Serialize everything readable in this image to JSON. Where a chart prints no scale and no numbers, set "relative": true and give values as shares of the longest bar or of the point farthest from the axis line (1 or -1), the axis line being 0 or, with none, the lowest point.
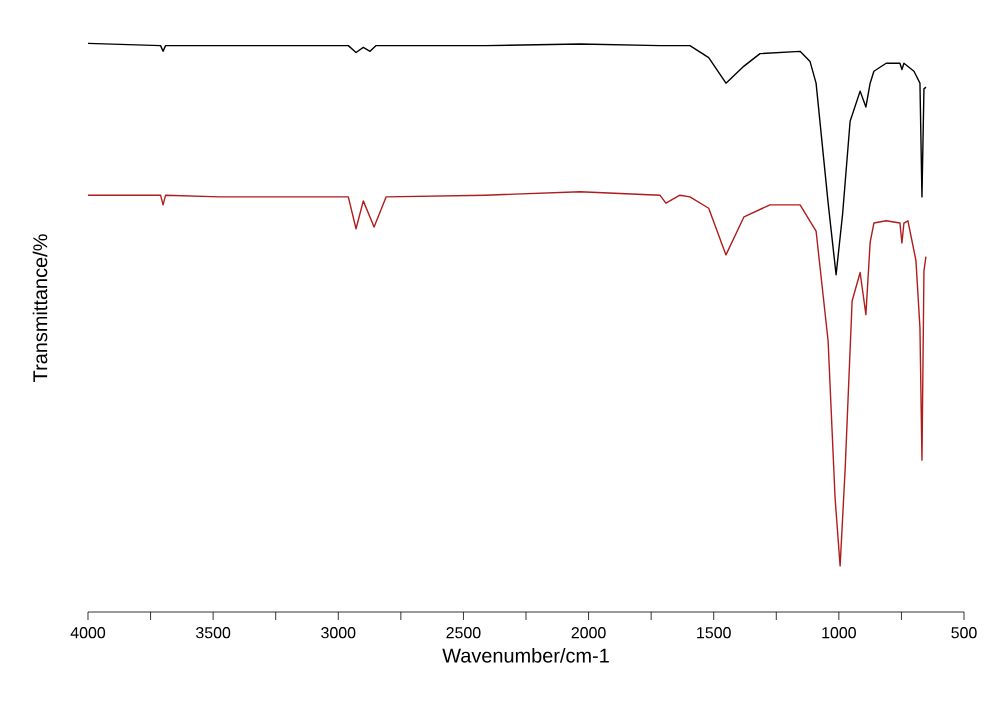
{
  "chart_data": {
    "type": "line",
    "relative": true,
    "xlabel": "Wavenumber/cm-1",
    "ylabel": "Transmittance/%",
    "xlim": [
      4000,
      500
    ],
    "xticks": [
      4000,
      {
        "value": 3750,
        "label": null
      },
      3500,
      {
        "value": 3250,
        "label": null
      },
      3000,
      {
        "value": 2750,
        "label": null
      },
      2500,
      {
        "value": 2250,
        "label": null
      },
      2000,
      {
        "value": 1750,
        "label": null
      },
      1500,
      {
        "value": 1250,
        "label": null
      },
      1000,
      {
        "value": 750,
        "label": null
      },
      500
    ],
    "tick_labels": "x",
    "series": [
      {
        "color": "#000000",
        "x": [
          4000,
          3710,
          3700,
          3690,
          2960,
          2929,
          2900,
          2873,
          2850,
          2410,
          2034,
          1715,
          1595,
          1520,
          1451,
          1379,
          1315,
          1155,
          1115,
          1091,
          1043,
          1011,
          985,
          955,
          915,
          892,
          875,
          860,
          811,
          756,
          748,
          740,
          700,
          676,
          668,
          660,
          652
        ],
        "values": [
          1.0,
          0.996,
          0.986,
          0.996,
          0.996,
          0.984,
          0.993,
          0.986,
          0.996,
          0.996,
          0.999,
          0.996,
          0.996,
          0.975,
          0.93,
          0.96,
          0.982,
          0.986,
          0.968,
          0.93,
          0.72,
          0.593,
          0.7,
          0.863,
          0.916,
          0.888,
          0.93,
          0.951,
          0.965,
          0.965,
          0.954,
          0.965,
          0.951,
          0.93,
          0.73,
          0.92,
          0.923
        ]
      },
      {
        "color": "#b01c1c",
        "x": [
          4000,
          3710,
          3700,
          3690,
          3473,
          2960,
          2929,
          2900,
          2857,
          2809,
          2410,
          2034,
          1715,
          1691,
          1635,
          1595,
          1520,
          1451,
          1379,
          1275,
          1155,
          1091,
          1043,
          1015,
          995,
          975,
          947,
          915,
          892,
          875,
          860,
          811,
          756,
          748,
          740,
          724,
          692,
          676,
          668,
          660,
          652
        ],
        "values": [
          0.733,
          0.733,
          0.716,
          0.733,
          0.73,
          0.73,
          0.674,
          0.723,
          0.677,
          0.73,
          0.733,
          0.739,
          0.733,
          0.719,
          0.733,
          0.73,
          0.71,
          0.628,
          0.695,
          0.716,
          0.716,
          0.67,
          0.477,
          0.2,
          0.081,
          0.25,
          0.547,
          0.597,
          0.523,
          0.65,
          0.684,
          0.688,
          0.684,
          0.649,
          0.684,
          0.688,
          0.618,
          0.5,
          0.267,
          0.6,
          0.625
        ]
      }
    ]
  }
}
